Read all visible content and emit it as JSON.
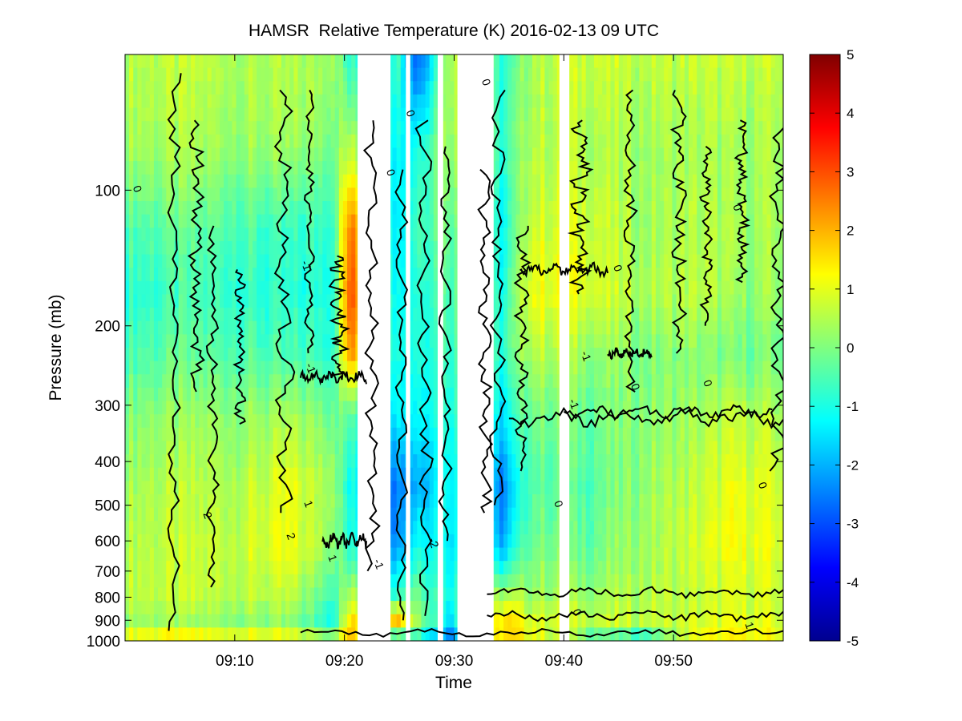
{
  "chart_data": {
    "type": "heatmap",
    "title": "HAMSR  Relative Temperature (K) 2016-02-13 09 UTC",
    "xlabel": "Time",
    "ylabel": "Pressure (mb)",
    "x_ticks": [
      "09:10",
      "09:20",
      "09:30",
      "09:40",
      "09:50"
    ],
    "x_tick_minutes": [
      10,
      20,
      30,
      40,
      50
    ],
    "xlim_minutes": [
      0,
      60
    ],
    "y_ticks": [
      100,
      200,
      300,
      400,
      500,
      600,
      700,
      800,
      900,
      1000
    ],
    "ylim": [
      1000,
      50
    ],
    "y_scale": "log",
    "y_reversed": true,
    "colorbar": {
      "label": "",
      "range": [
        -5,
        5
      ],
      "ticks": [
        5,
        4,
        3,
        2,
        1,
        0,
        -1,
        -2,
        -3,
        -4,
        -5
      ],
      "colormap": "jet"
    },
    "missing_data_minutes": [
      [
        21.2,
        24.2
      ],
      [
        25.6,
        26.0
      ],
      [
        28.5,
        29.0
      ],
      [
        30.3,
        33.6
      ],
      [
        39.6,
        40.5
      ]
    ],
    "column_profiles": [
      {
        "t": 0,
        "vals": [
          0.6,
          0.4,
          -0.4,
          -0.8,
          -0.5,
          0.1,
          0.4,
          0.6,
          0.7,
          0.3,
          1.6
        ]
      },
      {
        "t": 5,
        "vals": [
          0.6,
          0.4,
          -0.3,
          -0.6,
          -0.3,
          0.2,
          0.5,
          0.6,
          0.6,
          0.2,
          1.8
        ]
      },
      {
        "t": 10,
        "vals": [
          0.5,
          0.3,
          -0.4,
          -0.7,
          -0.4,
          0.2,
          0.5,
          0.7,
          0.6,
          0.1,
          1.6
        ]
      },
      {
        "t": 15,
        "vals": [
          0.4,
          0.2,
          -0.8,
          -1.0,
          -0.6,
          0.3,
          0.9,
          1.0,
          0.5,
          0.0,
          1.4
        ]
      },
      {
        "t": 19,
        "vals": [
          0.5,
          0.1,
          -0.5,
          -0.8,
          -0.6,
          0.0,
          0.5,
          0.3,
          -0.5,
          -0.9,
          0.8
        ]
      },
      {
        "t": 20.5,
        "vals": [
          -1.0,
          0.5,
          2.5,
          3.0,
          2.2,
          -0.5,
          -1.2,
          -1.0,
          0.5,
          1.5,
          2.0
        ]
      },
      {
        "t": 24.8,
        "vals": [
          -0.5,
          -1.2,
          -1.4,
          -1.2,
          -1.0,
          -1.3,
          -2.5,
          -2.2,
          -0.5,
          2.5,
          -2.0
        ]
      },
      {
        "t": 26.6,
        "vals": [
          -3.0,
          -1.0,
          -0.5,
          -0.8,
          -0.9,
          -1.2,
          -2.0,
          -1.0,
          0.0,
          0.5,
          -1.0
        ]
      },
      {
        "t": 29.6,
        "vals": [
          0.8,
          0.5,
          0.0,
          -0.3,
          -0.5,
          -0.8,
          -1.0,
          -1.2,
          -1.0,
          -1.5,
          -3.0
        ]
      },
      {
        "t": 34.5,
        "vals": [
          -1.0,
          -0.8,
          -1.2,
          -1.0,
          -0.8,
          -1.5,
          -2.5,
          -2.0,
          0.5,
          1.8,
          1.5
        ]
      },
      {
        "t": 37,
        "vals": [
          0.5,
          0.6,
          0.8,
          1.2,
          0.6,
          0.0,
          -0.3,
          0.0,
          0.4,
          1.0,
          1.2
        ]
      },
      {
        "t": 42,
        "vals": [
          0.8,
          0.5,
          0.9,
          1.0,
          0.3,
          -0.2,
          -0.4,
          -0.2,
          0.3,
          0.8,
          -0.5
        ]
      },
      {
        "t": 47,
        "vals": [
          0.6,
          0.3,
          0.3,
          0.4,
          0.0,
          0.1,
          0.2,
          0.3,
          0.5,
          0.6,
          -1.5
        ]
      },
      {
        "t": 52,
        "vals": [
          0.7,
          0.4,
          0.5,
          0.6,
          0.1,
          0.3,
          0.6,
          0.8,
          0.6,
          0.8,
          1.2
        ]
      },
      {
        "t": 56,
        "vals": [
          0.6,
          0.3,
          0.3,
          0.2,
          -0.2,
          0.6,
          1.0,
          1.1,
          0.8,
          1.0,
          1.4
        ]
      },
      {
        "t": 60,
        "vals": [
          0.7,
          0.4,
          0.4,
          0.3,
          -0.1,
          0.4,
          0.8,
          0.9,
          0.7,
          0.9,
          1.2
        ]
      }
    ],
    "profile_pressures": [
      50,
      80,
      120,
      170,
      230,
      320,
      450,
      620,
      800,
      920,
      1000
    ],
    "contour_labels": [
      "0",
      "0",
      "0",
      "0",
      "-1",
      "-1",
      "-1",
      "-1",
      "1",
      "1",
      "2",
      "2",
      "0",
      "-2",
      "0",
      "0",
      "0",
      "-1",
      "0",
      "0",
      "1",
      "0"
    ],
    "contour_label_positions": [
      {
        "t": 0.8,
        "p": 100
      },
      {
        "t": 23.9,
        "p": 92
      },
      {
        "t": 25.7,
        "p": 68
      },
      {
        "t": 32.6,
        "p": 58
      },
      {
        "t": 16.2,
        "p": 148
      },
      {
        "t": 16.6,
        "p": 250
      },
      {
        "t": 40.6,
        "p": 300
      },
      {
        "t": 41.7,
        "p": 235
      },
      {
        "t": 16.4,
        "p": 500
      },
      {
        "t": 18.6,
        "p": 660
      },
      {
        "t": 7.2,
        "p": 530
      },
      {
        "t": 14.8,
        "p": 590
      },
      {
        "t": 46.2,
        "p": 275
      },
      {
        "t": 27.8,
        "p": 610
      },
      {
        "t": 55.5,
        "p": 110
      },
      {
        "t": 52.8,
        "p": 270
      },
      {
        "t": 44.6,
        "p": 150
      },
      {
        "t": 22.8,
        "p": 680
      },
      {
        "t": 39.2,
        "p": 500
      },
      {
        "t": 40.9,
        "p": 870
      },
      {
        "t": 56.6,
        "p": 930
      },
      {
        "t": 57.8,
        "p": 455
      }
    ]
  }
}
